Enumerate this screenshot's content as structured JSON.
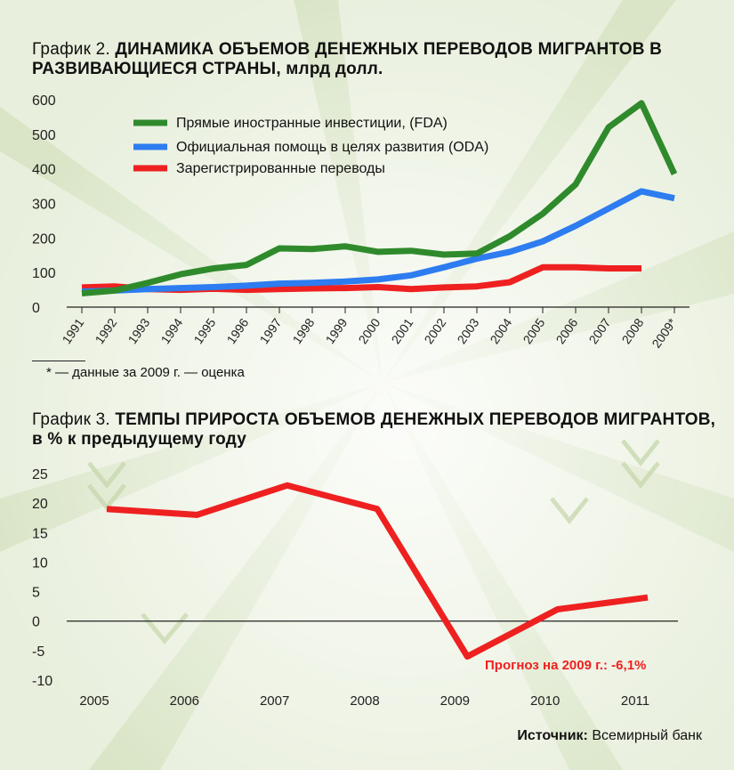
{
  "chart1": {
    "title_lead": "График 2.",
    "title_bold": "ДИНАМИКА ОБЪЕМОВ ДЕНЕЖНЫХ ПЕРЕВОДОВ МИГРАНТОВ В РАЗВИВАЮЩИЕСЯ СТРАНЫ,",
    "title_tail": " млрд долл.",
    "footnote": "* — данные за 2009 г. — оценка"
  },
  "chart2": {
    "title_lead": "График 3.",
    "title_bold": "ТЕМПЫ ПРИРОСТА ОБЪЕМОВ ДЕНЕЖНЫХ ПЕРЕВОДОВ МИГРАНТОВ,",
    "title_tail": " в % к предыдущему году",
    "forecast_note": "Прогноз на 2009 г.: -6,1%"
  },
  "source": {
    "label": "Источник:",
    "value": " Всемирный банк"
  },
  "colors": {
    "background": "#eef3e4",
    "fda": "#2f8a2c",
    "oda": "#2d7cf0",
    "remit": "#ee2020"
  },
  "chart_data": [
    {
      "type": "line",
      "title": "ДИНАМИКА ОБЪЕМОВ ДЕНЕЖНЫХ ПЕРЕВОДОВ МИГРАНТОВ В РАЗВИВАЮЩИЕСЯ СТРАНЫ, млрд долл.",
      "xlabel": "",
      "ylabel": "",
      "x": [
        "1991",
        "1992",
        "1993",
        "1994",
        "1995",
        "1996",
        "1997",
        "1998",
        "1999",
        "2000",
        "2001",
        "2002",
        "2003",
        "2004",
        "2005",
        "2006",
        "2007",
        "2008",
        "2009*"
      ],
      "ylim": [
        0,
        600
      ],
      "yticks": [
        0,
        100,
        200,
        300,
        400,
        500,
        600
      ],
      "grid": false,
      "legend": "top-left",
      "series": [
        {
          "name": "Прямые иностранные инвестиции, (FDA)",
          "color": "#2f8a2c",
          "values": [
            40,
            48,
            70,
            95,
            112,
            122,
            170,
            168,
            176,
            160,
            163,
            152,
            155,
            205,
            270,
            355,
            520,
            590,
            385
          ]
        },
        {
          "name": "Официальная помощь в целях развития (ODA)",
          "color": "#2d7cf0",
          "values": [
            45,
            48,
            52,
            55,
            58,
            62,
            68,
            70,
            74,
            80,
            92,
            115,
            140,
            160,
            190,
            235,
            285,
            335,
            315
          ]
        },
        {
          "name": "Зарегистрированные переводы",
          "color": "#ee2020",
          "values": [
            57,
            60,
            52,
            50,
            53,
            50,
            52,
            54,
            55,
            58,
            52,
            57,
            60,
            72,
            115,
            115,
            112,
            112,
            null
          ]
        }
      ]
    },
    {
      "type": "line",
      "title": "ТЕМПЫ ПРИРОСТА ОБЪЕМОВ ДЕНЕЖНЫХ ПЕРЕВОДОВ МИГРАНТОВ, в % к предыдущему году",
      "xlabel": "",
      "ylabel": "",
      "x": [
        "2005",
        "2006",
        "2007",
        "2008",
        "2009",
        "2010",
        "2011"
      ],
      "ylim": [
        -10,
        25
      ],
      "yticks": [
        25,
        20,
        15,
        10,
        5,
        0,
        -5,
        -10
      ],
      "grid": false,
      "series": [
        {
          "color": "#ee2020",
          "values": [
            19,
            18,
            23,
            19,
            -6,
            2,
            4
          ]
        }
      ]
    }
  ]
}
